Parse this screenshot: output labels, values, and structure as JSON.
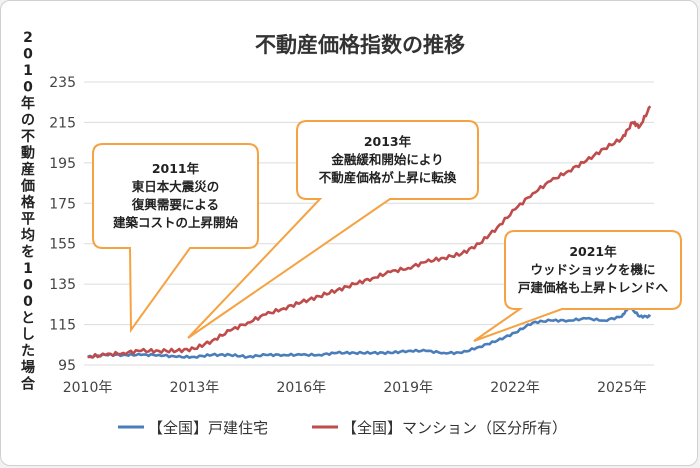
{
  "chart_data": {
    "type": "line",
    "title": "不動産価格指数の推移",
    "ylabel": "2010年の不動産価格平均を100とした場合",
    "xlabel": "",
    "ylim": [
      95,
      235
    ],
    "yticks": [
      95,
      115,
      135,
      155,
      175,
      195,
      215,
      235
    ],
    "xlim": [
      2009.9,
      2025.9
    ],
    "xticks": [
      {
        "value": 2010,
        "label": "2010年"
      },
      {
        "value": 2013,
        "label": "2013年"
      },
      {
        "value": 2016,
        "label": "2016年"
      },
      {
        "value": 2019,
        "label": "2019年"
      },
      {
        "value": 2022,
        "label": "2022年"
      },
      {
        "value": 2025,
        "label": "2025年"
      }
    ],
    "grid": true,
    "legend_position": "bottom",
    "series": [
      {
        "name": "【全国】戸建住宅",
        "color": "#4a7ebb",
        "x": [
          2010.0,
          2010.5,
          2011.0,
          2011.5,
          2012.0,
          2012.5,
          2013.0,
          2013.5,
          2014.0,
          2014.5,
          2015.0,
          2015.5,
          2016.0,
          2016.5,
          2017.0,
          2017.5,
          2018.0,
          2018.5,
          2019.0,
          2019.5,
          2020.0,
          2020.5,
          2021.0,
          2021.5,
          2022.0,
          2022.5,
          2023.0,
          2023.5,
          2024.0,
          2024.5,
          2025.0,
          2025.2,
          2025.5,
          2025.8
        ],
        "y": [
          99,
          100,
          100,
          100,
          100,
          99,
          99,
          100,
          100,
          99,
          100,
          100,
          100,
          100,
          101,
          101,
          101,
          101,
          102,
          102,
          101,
          101,
          104,
          107,
          111,
          116,
          117,
          117,
          118,
          117,
          119,
          124,
          119,
          119
        ]
      },
      {
        "name": "【全国】マンション（区分所有）",
        "color": "#bf4b4b",
        "x": [
          2010.0,
          2010.5,
          2011.0,
          2011.5,
          2012.0,
          2012.5,
          2013.0,
          2013.5,
          2014.0,
          2014.5,
          2015.0,
          2015.5,
          2016.0,
          2016.5,
          2017.0,
          2017.5,
          2018.0,
          2018.5,
          2019.0,
          2019.5,
          2020.0,
          2020.5,
          2021.0,
          2021.5,
          2022.0,
          2022.5,
          2023.0,
          2023.5,
          2024.0,
          2024.5,
          2025.0,
          2025.3,
          2025.5,
          2025.8
        ],
        "y": [
          99,
          100,
          101,
          102,
          102,
          102,
          103,
          107,
          112,
          116,
          120,
          123,
          126,
          129,
          132,
          135,
          138,
          141,
          143,
          146,
          148,
          150,
          155,
          163,
          172,
          180,
          186,
          191,
          196,
          202,
          207,
          215,
          213,
          223
        ]
      }
    ],
    "annotations": [
      {
        "lines": [
          "2011年",
          "東日本大震災の",
          "復興需要による",
          "建築コストの上昇開始"
        ]
      },
      {
        "lines": [
          "2013年",
          "金融緩和開始により",
          "不動産価格が上昇に転換"
        ]
      },
      {
        "lines": [
          "2021年",
          "ウッドショックを機に",
          "戸建価格も上昇トレンドへ"
        ]
      }
    ],
    "callout_color": "#f5a242"
  }
}
